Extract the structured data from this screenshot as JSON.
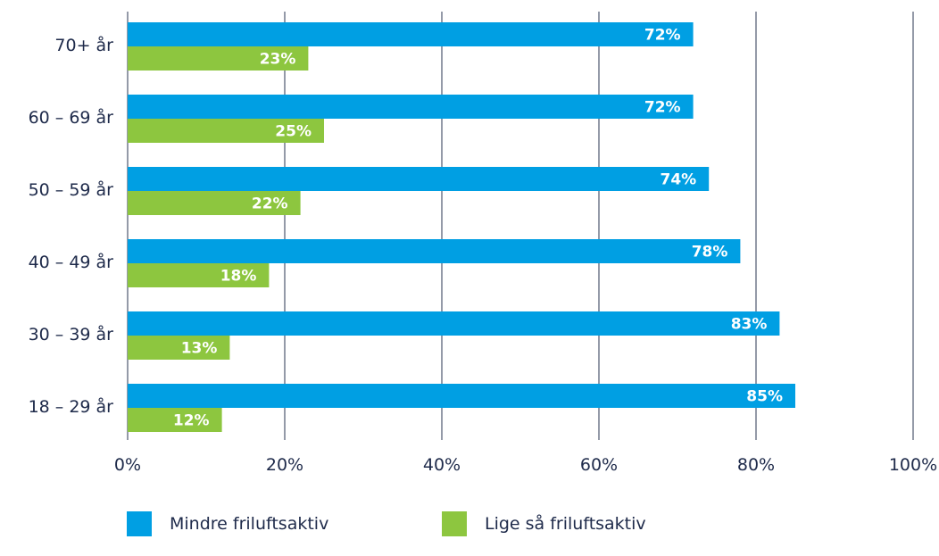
{
  "chart_data": {
    "type": "bar",
    "orientation": "horizontal",
    "categories": [
      "70+ år",
      "60 – 69 år",
      "50 – 59 år",
      "40 – 49 år",
      "30 – 39 år",
      "18 – 29 år"
    ],
    "series": [
      {
        "name": "Mindre friluftsaktiv",
        "color": "#009fe3",
        "values": [
          72,
          72,
          74,
          78,
          83,
          85
        ],
        "labels": [
          "72%",
          "72%",
          "74%",
          "78%",
          "83%",
          "85%"
        ]
      },
      {
        "name": "Lige så friluftsaktiv",
        "color": "#8dc63f",
        "values": [
          23,
          25,
          22,
          18,
          13,
          12
        ],
        "labels": [
          "23%",
          "25%",
          "22%",
          "18%",
          "13%",
          "12%"
        ]
      }
    ],
    "xlim": [
      0,
      100
    ],
    "xticks": [
      0,
      20,
      40,
      60,
      80,
      100
    ],
    "xtick_labels": [
      "0%",
      "20%",
      "40%",
      "60%",
      "80%",
      "100%"
    ],
    "grid": "vertical",
    "legend_position": "bottom"
  },
  "colors": {
    "text": "#1e2a4a",
    "gridline": "#2a3550"
  }
}
